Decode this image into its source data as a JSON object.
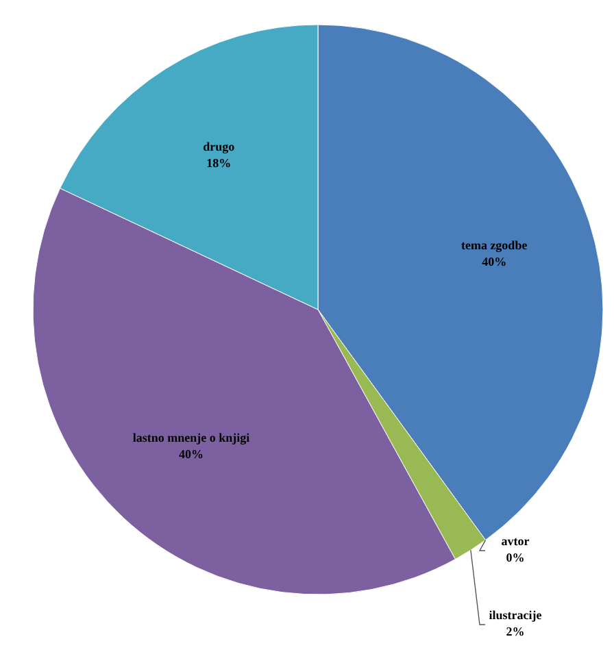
{
  "chart_data": {
    "type": "pie",
    "categories": [
      "tema zgodbe",
      "avtor",
      "ilustracije",
      "lastno mnenje o knjigi",
      "drugo"
    ],
    "values": [
      40,
      0,
      2,
      40,
      18
    ],
    "colors": [
      "#4a7ebb",
      "#be4b48",
      "#98b954",
      "#7d60a0",
      "#46aac5"
    ],
    "value_labels": [
      "40%",
      "0%",
      "2%",
      "40%",
      "18%"
    ]
  }
}
